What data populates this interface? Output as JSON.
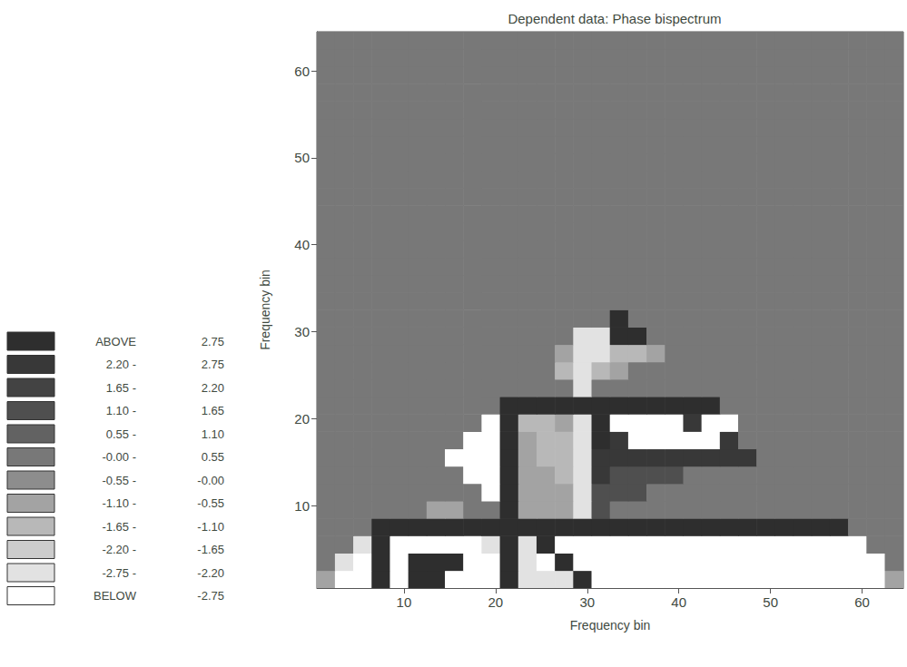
{
  "chart_data": {
    "type": "heatmap",
    "title": "Dependent data: Phase bispectrum",
    "x_label": "Frequency bin",
    "y_label": "Frequency bin",
    "xlim": [
      0.5,
      64.5
    ],
    "ylim": [
      0.5,
      64.5
    ],
    "xticks": [
      10,
      20,
      30,
      40,
      50,
      60
    ],
    "yticks": [
      10,
      20,
      30,
      40,
      50,
      60
    ],
    "grid": false,
    "x": [
      1.5,
      3.5,
      5.5,
      7.5,
      9.5,
      11.5,
      13.5,
      15.5,
      17.5,
      19.5,
      21.5,
      23.5,
      25.5,
      27.5,
      29.5,
      31.5,
      33.5,
      35.5,
      37.5,
      39.5,
      41.5,
      43.5,
      45.5,
      47.5,
      49.5,
      51.5,
      53.5,
      55.5,
      57.5,
      59.5,
      61.5,
      63.5
    ],
    "y": [
      1.5,
      3.5,
      5.5,
      7.5,
      9.5,
      11.5,
      13.5,
      15.5,
      17.5,
      19.5,
      21.5,
      23.5,
      25.5,
      27.5,
      29.5,
      31.5,
      33.5,
      35.5,
      37.5,
      39.5,
      41.5,
      43.5,
      45.5,
      47.5,
      49.5,
      51.5,
      53.5,
      55.5,
      57.5,
      59.5,
      61.5,
      63.5
    ],
    "cells": [
      [
        -0.8,
        -3,
        -3,
        3,
        -3,
        3,
        3,
        -3,
        -3,
        -3,
        3,
        -2.5,
        -2.5,
        -2.5,
        3,
        -3,
        -3,
        -3,
        -3,
        -3,
        -3,
        -3,
        -3,
        -3,
        -3,
        -3,
        -3,
        -3,
        -3,
        -3,
        -3,
        -0.8
      ],
      [
        0.3,
        -2.5,
        -3,
        3,
        -3,
        3,
        3,
        3,
        -3,
        -3,
        3,
        -2.5,
        -3,
        3,
        -3,
        -3,
        -3,
        -3,
        -3,
        -3,
        -3,
        -3,
        -3,
        -3,
        -3,
        -3,
        -3,
        -3,
        -3,
        -3,
        -3,
        0.3
      ],
      [
        0.3,
        0.3,
        -2.5,
        3,
        -3,
        -3,
        -3,
        -3,
        -3,
        -2.5,
        3,
        -2.5,
        3,
        -3,
        -3,
        -3,
        -3,
        -3,
        -3,
        -3,
        -3,
        -3,
        -3,
        -3,
        -3,
        -3,
        -3,
        -3,
        -3,
        -3,
        0.3,
        0.3
      ],
      [
        0.3,
        0.3,
        0.3,
        3,
        3,
        3,
        3,
        3,
        3,
        3,
        3,
        3,
        3,
        3,
        3,
        3,
        3,
        3,
        3,
        3,
        3,
        3,
        3,
        3,
        3,
        3,
        3,
        3,
        3,
        0.3,
        0.3,
        0.3
      ],
      [
        0.3,
        0.3,
        0.3,
        0.3,
        0.3,
        0.3,
        -0.8,
        -0.8,
        0.3,
        0.3,
        3,
        -0.8,
        -0.8,
        -0.8,
        -2.5,
        1.4,
        0.3,
        0.3,
        0.3,
        0.3,
        0.3,
        0.3,
        0.3,
        0.3,
        0.3,
        0.3,
        0.3,
        0.3,
        0.3,
        0.3,
        0.3,
        0.3
      ],
      [
        0.3,
        0.3,
        0.3,
        0.3,
        0.3,
        0.3,
        0.3,
        0.3,
        0.3,
        -3,
        3,
        -0.8,
        -0.8,
        -0.8,
        -2.5,
        1.4,
        1.4,
        1.4,
        0.3,
        0.3,
        0.3,
        0.3,
        0.3,
        0.3,
        0.3,
        0.3,
        0.3,
        0.3,
        0.3,
        0.3,
        0.3,
        0.3
      ],
      [
        0.3,
        0.3,
        0.3,
        0.3,
        0.3,
        0.3,
        0.3,
        0.3,
        -3,
        -3,
        3,
        -0.8,
        -0.8,
        -1.4,
        -2.5,
        2.5,
        1.4,
        1.4,
        1.4,
        1.4,
        0.3,
        0.3,
        0.3,
        0.3,
        0.3,
        0.3,
        0.3,
        0.3,
        0.3,
        0.3,
        0.3,
        0.3
      ],
      [
        0.3,
        0.3,
        0.3,
        0.3,
        0.3,
        0.3,
        0.3,
        -3,
        -3,
        -3,
        3,
        -0.8,
        -1.4,
        -1.4,
        -2.5,
        2.5,
        2.5,
        2.5,
        2.5,
        2.5,
        2.5,
        2.5,
        2.5,
        2.5,
        0.3,
        0.3,
        0.3,
        0.3,
        0.3,
        0.3,
        0.3,
        0.3
      ],
      [
        0.3,
        0.3,
        0.3,
        0.3,
        0.3,
        0.3,
        0.3,
        0.3,
        -3,
        -3,
        3,
        -0.8,
        -1.4,
        -1.4,
        -2.5,
        3,
        2.5,
        -3,
        -3,
        -3,
        -3,
        -3,
        2.5,
        0.3,
        0.3,
        0.3,
        0.3,
        0.3,
        0.3,
        0.3,
        0.3,
        0.3
      ],
      [
        0.3,
        0.3,
        0.3,
        0.3,
        0.3,
        0.3,
        0.3,
        0.3,
        0.3,
        -3,
        3,
        -1.4,
        -1.4,
        -0.8,
        -2.5,
        3,
        -3,
        -3,
        -3,
        -3,
        2.5,
        -3,
        -3,
        0.3,
        0.3,
        0.3,
        0.3,
        0.3,
        0.3,
        0.3,
        0.3,
        0.3
      ],
      [
        0.3,
        0.3,
        0.3,
        0.3,
        0.3,
        0.3,
        0.3,
        0.3,
        0.3,
        0.3,
        3,
        3,
        3,
        3,
        3,
        3,
        3,
        3,
        3,
        3,
        3,
        3,
        0.3,
        0.3,
        0.3,
        0.3,
        0.3,
        0.3,
        0.3,
        0.3,
        0.3,
        0.3
      ],
      [
        0.3,
        0.3,
        0.3,
        0.3,
        0.3,
        0.3,
        0.3,
        0.3,
        0.3,
        0.3,
        0.3,
        0.3,
        0.3,
        0.3,
        -2.5,
        0.3,
        0.3,
        0.3,
        0.3,
        0.3,
        0.3,
        0.3,
        0.3,
        0.3,
        0.3,
        0.3,
        0.3,
        0.3,
        0.3,
        0.3,
        0.3,
        0.3
      ],
      [
        0.3,
        0.3,
        0.3,
        0.3,
        0.3,
        0.3,
        0.3,
        0.3,
        0.3,
        0.3,
        0.3,
        0.3,
        0.3,
        -1.4,
        -2.5,
        -1.4,
        -0.8,
        0.3,
        0.3,
        0.3,
        0.3,
        0.3,
        0.3,
        0.3,
        0.3,
        0.3,
        0.3,
        0.3,
        0.3,
        0.3,
        0.3,
        0.3
      ],
      [
        0.3,
        0.3,
        0.3,
        0.3,
        0.3,
        0.3,
        0.3,
        0.3,
        0.3,
        0.3,
        0.3,
        0.3,
        0.3,
        -0.8,
        -2.5,
        -2.5,
        -1.4,
        -1.4,
        -0.8,
        0.3,
        0.3,
        0.3,
        0.3,
        0.3,
        0.3,
        0.3,
        0.3,
        0.3,
        0.3,
        0.3,
        0.3,
        0.3
      ],
      [
        0.3,
        0.3,
        0.3,
        0.3,
        0.3,
        0.3,
        0.3,
        0.3,
        0.3,
        0.3,
        0.3,
        0.3,
        0.3,
        0.3,
        -2.5,
        -2.5,
        3,
        3,
        0.3,
        0.3,
        0.3,
        0.3,
        0.3,
        0.3,
        0.3,
        0.3,
        0.3,
        0.3,
        0.3,
        0.3,
        0.3,
        0.3
      ],
      [
        0.3,
        0.3,
        0.3,
        0.3,
        0.3,
        0.3,
        0.3,
        0.3,
        0.3,
        0.3,
        0.3,
        0.3,
        0.3,
        0.3,
        0.3,
        0.3,
        3,
        0.3,
        0.3,
        0.3,
        0.3,
        0.3,
        0.3,
        0.3,
        0.3,
        0.3,
        0.3,
        0.3,
        0.3,
        0.3,
        0.3,
        0.3
      ],
      [
        0.3,
        0.3,
        0.3,
        0.3,
        0.3,
        0.3,
        0.3,
        0.3,
        0.3,
        0.3,
        0.3,
        0.3,
        0.3,
        0.3,
        0.3,
        0.3,
        0.3,
        0.3,
        0.3,
        0.3,
        0.3,
        0.3,
        0.3,
        0.3,
        0.3,
        0.3,
        0.3,
        0.3,
        0.3,
        0.3,
        0.3,
        0.3
      ],
      [
        0.3,
        0.3,
        0.3,
        0.3,
        0.3,
        0.3,
        0.3,
        0.3,
        0.3,
        0.3,
        0.3,
        0.3,
        0.3,
        0.3,
        0.3,
        0.3,
        0.3,
        0.3,
        0.3,
        0.3,
        0.3,
        0.3,
        0.3,
        0.3,
        0.3,
        0.3,
        0.3,
        0.3,
        0.3,
        0.3,
        0.3,
        0.3
      ],
      [
        0.3,
        0.3,
        0.3,
        0.3,
        0.3,
        0.3,
        0.3,
        0.3,
        0.3,
        0.3,
        0.3,
        0.3,
        0.3,
        0.3,
        0.3,
        0.3,
        0.3,
        0.3,
        0.3,
        0.3,
        0.3,
        0.3,
        0.3,
        0.3,
        0.3,
        0.3,
        0.3,
        0.3,
        0.3,
        0.3,
        0.3,
        0.3
      ],
      [
        0.3,
        0.3,
        0.3,
        0.3,
        0.3,
        0.3,
        0.3,
        0.3,
        0.3,
        0.3,
        0.3,
        0.3,
        0.3,
        0.3,
        0.3,
        0.3,
        0.3,
        0.3,
        0.3,
        0.3,
        0.3,
        0.3,
        0.3,
        0.3,
        0.3,
        0.3,
        0.3,
        0.3,
        0.3,
        0.3,
        0.3,
        0.3
      ],
      [
        0.3,
        0.3,
        0.3,
        0.3,
        0.3,
        0.3,
        0.3,
        0.3,
        0.3,
        0.3,
        0.3,
        0.3,
        0.3,
        0.3,
        0.3,
        0.3,
        0.3,
        0.3,
        0.3,
        0.3,
        0.3,
        0.3,
        0.3,
        0.3,
        0.3,
        0.3,
        0.3,
        0.3,
        0.3,
        0.3,
        0.3,
        0.3
      ],
      [
        0.3,
        0.3,
        0.3,
        0.3,
        0.3,
        0.3,
        0.3,
        0.3,
        0.3,
        0.3,
        0.3,
        0.3,
        0.3,
        0.3,
        0.3,
        0.3,
        0.3,
        0.3,
        0.3,
        0.3,
        0.3,
        0.3,
        0.3,
        0.3,
        0.3,
        0.3,
        0.3,
        0.3,
        0.3,
        0.3,
        0.3,
        0.3
      ],
      [
        0.3,
        0.3,
        0.3,
        0.3,
        0.3,
        0.3,
        0.3,
        0.3,
        0.3,
        0.3,
        0.3,
        0.3,
        0.3,
        0.3,
        0.3,
        0.3,
        0.3,
        0.3,
        0.3,
        0.3,
        0.3,
        0.3,
        0.3,
        0.3,
        0.3,
        0.3,
        0.3,
        0.3,
        0.3,
        0.3,
        0.3,
        0.3
      ],
      [
        0.3,
        0.3,
        0.3,
        0.3,
        0.3,
        0.3,
        0.3,
        0.3,
        0.3,
        0.3,
        0.3,
        0.3,
        0.3,
        0.3,
        0.3,
        0.3,
        0.3,
        0.3,
        0.3,
        0.3,
        0.3,
        0.3,
        0.3,
        0.3,
        0.3,
        0.3,
        0.3,
        0.3,
        0.3,
        0.3,
        0.3,
        0.3
      ],
      [
        0.3,
        0.3,
        0.3,
        0.3,
        0.3,
        0.3,
        0.3,
        0.3,
        0.3,
        0.3,
        0.3,
        0.3,
        0.3,
        0.3,
        0.3,
        0.3,
        0.3,
        0.3,
        0.3,
        0.3,
        0.3,
        0.3,
        0.3,
        0.3,
        0.3,
        0.3,
        0.3,
        0.3,
        0.3,
        0.3,
        0.3,
        0.3
      ],
      [
        0.3,
        0.3,
        0.3,
        0.3,
        0.3,
        0.3,
        0.3,
        0.3,
        0.3,
        0.3,
        0.3,
        0.3,
        0.3,
        0.3,
        0.3,
        0.3,
        0.3,
        0.3,
        0.3,
        0.3,
        0.3,
        0.3,
        0.3,
        0.3,
        0.3,
        0.3,
        0.3,
        0.3,
        0.3,
        0.3,
        0.3,
        0.3
      ],
      [
        0.3,
        0.3,
        0.3,
        0.3,
        0.3,
        0.3,
        0.3,
        0.3,
        0.3,
        0.3,
        0.3,
        0.3,
        0.3,
        0.3,
        0.3,
        0.3,
        0.3,
        0.3,
        0.3,
        0.3,
        0.3,
        0.3,
        0.3,
        0.3,
        0.3,
        0.3,
        0.3,
        0.3,
        0.3,
        0.3,
        0.3,
        0.3
      ],
      [
        0.3,
        0.3,
        0.3,
        0.3,
        0.3,
        0.3,
        0.3,
        0.3,
        0.3,
        0.3,
        0.3,
        0.3,
        0.3,
        0.3,
        0.3,
        0.3,
        0.3,
        0.3,
        0.3,
        0.3,
        0.3,
        0.3,
        0.3,
        0.3,
        0.3,
        0.3,
        0.3,
        0.3,
        0.3,
        0.3,
        0.3,
        0.3
      ],
      [
        0.3,
        0.3,
        0.3,
        0.3,
        0.3,
        0.3,
        0.3,
        0.3,
        0.3,
        0.3,
        0.3,
        0.3,
        0.3,
        0.3,
        0.3,
        0.3,
        0.3,
        0.3,
        0.3,
        0.3,
        0.3,
        0.3,
        0.3,
        0.3,
        0.3,
        0.3,
        0.3,
        0.3,
        0.3,
        0.3,
        0.3,
        0.3
      ],
      [
        0.3,
        0.3,
        0.3,
        0.3,
        0.3,
        0.3,
        0.3,
        0.3,
        0.3,
        0.3,
        0.3,
        0.3,
        0.3,
        0.3,
        0.3,
        0.3,
        0.3,
        0.3,
        0.3,
        0.3,
        0.3,
        0.3,
        0.3,
        0.3,
        0.3,
        0.3,
        0.3,
        0.3,
        0.3,
        0.3,
        0.3,
        0.3
      ],
      [
        0.3,
        0.3,
        0.3,
        0.3,
        0.3,
        0.3,
        0.3,
        0.3,
        0.3,
        0.3,
        0.3,
        0.3,
        0.3,
        0.3,
        0.3,
        0.3,
        0.3,
        0.3,
        0.3,
        0.3,
        0.3,
        0.3,
        0.3,
        0.3,
        0.3,
        0.3,
        0.3,
        0.3,
        0.3,
        0.3,
        0.3,
        0.3
      ],
      [
        0.3,
        0.3,
        0.3,
        0.3,
        0.3,
        0.3,
        0.3,
        0.3,
        0.3,
        0.3,
        0.3,
        0.3,
        0.3,
        0.3,
        0.3,
        0.3,
        0.3,
        0.3,
        0.3,
        0.3,
        0.3,
        0.3,
        0.3,
        0.3,
        0.3,
        0.3,
        0.3,
        0.3,
        0.3,
        0.3,
        0.3,
        0.3
      ]
    ],
    "color_bar": {
      "labels": [
        [
          "ABOVE",
          "2.75"
        ],
        [
          "2.20 -",
          "2.75"
        ],
        [
          "1.65 -",
          "2.20"
        ],
        [
          "1.10 -",
          "1.65"
        ],
        [
          "0.55 -",
          "1.10"
        ],
        [
          "-0.00 -",
          "0.55"
        ],
        [
          "-0.55 -",
          "-0.00"
        ],
        [
          "-1.10 -",
          "-0.55"
        ],
        [
          "-1.65 -",
          "-1.10"
        ],
        [
          "-2.20 -",
          "-1.65"
        ],
        [
          "-2.75 -",
          "-2.20"
        ],
        [
          "BELOW",
          "-2.75"
        ]
      ],
      "ranges": [
        [
          2.75,
          null
        ],
        [
          2.2,
          2.75
        ],
        [
          1.65,
          2.2
        ],
        [
          1.1,
          1.65
        ],
        [
          0.55,
          1.1
        ],
        [
          0,
          0.55
        ],
        [
          -0.55,
          0
        ],
        [
          -1.1,
          -0.55
        ],
        [
          -1.65,
          -1.1
        ],
        [
          -2.2,
          -1.65
        ],
        [
          -2.75,
          -2.2
        ],
        [
          null,
          -2.75
        ]
      ],
      "colors": [
        "#2e2e2e",
        "#383838",
        "#434343",
        "#4f4f4f",
        "#626262",
        "#787878",
        "#8d8d8d",
        "#a3a3a3",
        "#b8b8b8",
        "#cccccc",
        "#e2e2e2",
        "#ffffff"
      ]
    }
  }
}
